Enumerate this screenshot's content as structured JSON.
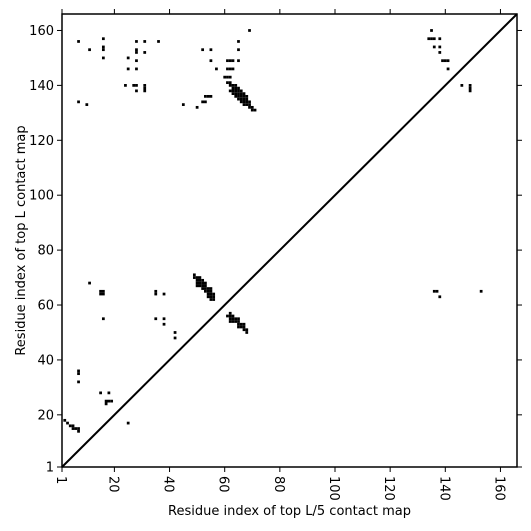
{
  "chart_data": {
    "type": "heatmap",
    "title": "",
    "xlabel": "Residue index of top L/5 contact map",
    "ylabel": "Residue index of top L contact map",
    "xlim": [
      1,
      166
    ],
    "ylim": [
      1,
      166
    ],
    "x_ticks": [
      1,
      20,
      40,
      60,
      80,
      100,
      120,
      140,
      160
    ],
    "y_ticks": [
      1,
      20,
      40,
      60,
      80,
      100,
      120,
      140,
      160
    ],
    "x_tick_rotation": -90,
    "grid": false,
    "diagonal_line": true,
    "cell_color": "#000000",
    "background_color": "#ffffff",
    "cells": [
      [
        7,
        156
      ],
      [
        11,
        153
      ],
      [
        16,
        157
      ],
      [
        16,
        154
      ],
      [
        16,
        153
      ],
      [
        16,
        150
      ],
      [
        25,
        150
      ],
      [
        25,
        146
      ],
      [
        28,
        156
      ],
      [
        28,
        153
      ],
      [
        28,
        152
      ],
      [
        28,
        149
      ],
      [
        28,
        146
      ],
      [
        31,
        156
      ],
      [
        31,
        152
      ],
      [
        36,
        156
      ],
      [
        24,
        140
      ],
      [
        27,
        140
      ],
      [
        28,
        140
      ],
      [
        28,
        138
      ],
      [
        31,
        140
      ],
      [
        31,
        139
      ],
      [
        31,
        138
      ],
      [
        7,
        134
      ],
      [
        10,
        133
      ],
      [
        45,
        133
      ],
      [
        50,
        132
      ],
      [
        52,
        134
      ],
      [
        53,
        134
      ],
      [
        53,
        136
      ],
      [
        54,
        136
      ],
      [
        55,
        136
      ],
      [
        52,
        153
      ],
      [
        55,
        153
      ],
      [
        55,
        149
      ],
      [
        57,
        146
      ],
      [
        61,
        149
      ],
      [
        62,
        149
      ],
      [
        63,
        149
      ],
      [
        65,
        149
      ],
      [
        65,
        153
      ],
      [
        65,
        156
      ],
      [
        69,
        160
      ],
      [
        61,
        146
      ],
      [
        62,
        146
      ],
      [
        63,
        146
      ],
      [
        60,
        143
      ],
      [
        61,
        143
      ],
      [
        62,
        143
      ],
      [
        61,
        141
      ],
      [
        62,
        141
      ],
      [
        62,
        140
      ],
      [
        63,
        140
      ],
      [
        63,
        139
      ],
      [
        64,
        140
      ],
      [
        64,
        139
      ],
      [
        64,
        138
      ],
      [
        65,
        139
      ],
      [
        65,
        138
      ],
      [
        65,
        137
      ],
      [
        66,
        138
      ],
      [
        66,
        137
      ],
      [
        66,
        136
      ],
      [
        67,
        137
      ],
      [
        67,
        136
      ],
      [
        67,
        135
      ],
      [
        68,
        136
      ],
      [
        68,
        135
      ],
      [
        68,
        134
      ],
      [
        69,
        134
      ],
      [
        69,
        133
      ],
      [
        68,
        133
      ],
      [
        69,
        132
      ],
      [
        70,
        132
      ],
      [
        70,
        131
      ],
      [
        71,
        131
      ],
      [
        62,
        138
      ],
      [
        63,
        138
      ],
      [
        63,
        137
      ],
      [
        64,
        137
      ],
      [
        64,
        136
      ],
      [
        65,
        136
      ],
      [
        65,
        135
      ],
      [
        66,
        135
      ],
      [
        66,
        134
      ],
      [
        67,
        134
      ],
      [
        67,
        133
      ],
      [
        135,
        160
      ],
      [
        134,
        157
      ],
      [
        135,
        157
      ],
      [
        136,
        157
      ],
      [
        138,
        157
      ],
      [
        136,
        154
      ],
      [
        138,
        154
      ],
      [
        138,
        152
      ],
      [
        139,
        149
      ],
      [
        140,
        149
      ],
      [
        141,
        149
      ],
      [
        141,
        146
      ],
      [
        146,
        140
      ],
      [
        149,
        140
      ],
      [
        149,
        139
      ],
      [
        149,
        138
      ],
      [
        2,
        18
      ],
      [
        3,
        17
      ],
      [
        4,
        16
      ],
      [
        5,
        16
      ],
      [
        5,
        15
      ],
      [
        6,
        15
      ],
      [
        7,
        15
      ],
      [
        7,
        14
      ],
      [
        7,
        35
      ],
      [
        7,
        36
      ],
      [
        7,
        32
      ],
      [
        15,
        28
      ],
      [
        18,
        28
      ],
      [
        17,
        25
      ],
      [
        18,
        25
      ],
      [
        19,
        25
      ],
      [
        17,
        24
      ],
      [
        25,
        17
      ],
      [
        11,
        68
      ],
      [
        15,
        65
      ],
      [
        15,
        64
      ],
      [
        16,
        65
      ],
      [
        16,
        64
      ],
      [
        16,
        55
      ],
      [
        35,
        65
      ],
      [
        35,
        64
      ],
      [
        38,
        64
      ],
      [
        35,
        55
      ],
      [
        38,
        55
      ],
      [
        38,
        53
      ],
      [
        42,
        50
      ],
      [
        42,
        48
      ],
      [
        49,
        71
      ],
      [
        49,
        70
      ],
      [
        50,
        70
      ],
      [
        51,
        70
      ],
      [
        50,
        69
      ],
      [
        51,
        69
      ],
      [
        52,
        69
      ],
      [
        50,
        68
      ],
      [
        51,
        68
      ],
      [
        52,
        68
      ],
      [
        53,
        68
      ],
      [
        50,
        67
      ],
      [
        51,
        67
      ],
      [
        52,
        67
      ],
      [
        53,
        67
      ],
      [
        52,
        66
      ],
      [
        53,
        66
      ],
      [
        54,
        66
      ],
      [
        55,
        66
      ],
      [
        53,
        65
      ],
      [
        54,
        65
      ],
      [
        55,
        65
      ],
      [
        54,
        64
      ],
      [
        55,
        64
      ],
      [
        56,
        64
      ],
      [
        54,
        63
      ],
      [
        55,
        63
      ],
      [
        56,
        63
      ],
      [
        55,
        62
      ],
      [
        56,
        62
      ],
      [
        61,
        56
      ],
      [
        62,
        57
      ],
      [
        62,
        56
      ],
      [
        63,
        56
      ],
      [
        62,
        55
      ],
      [
        63,
        55
      ],
      [
        64,
        55
      ],
      [
        65,
        55
      ],
      [
        62,
        54
      ],
      [
        63,
        54
      ],
      [
        64,
        54
      ],
      [
        65,
        54
      ],
      [
        65,
        53
      ],
      [
        66,
        53
      ],
      [
        67,
        53
      ],
      [
        65,
        52
      ],
      [
        66,
        52
      ],
      [
        67,
        52
      ],
      [
        67,
        51
      ],
      [
        68,
        51
      ],
      [
        68,
        50
      ],
      [
        136,
        65
      ],
      [
        137,
        65
      ],
      [
        138,
        63
      ],
      [
        153,
        65
      ]
    ]
  }
}
